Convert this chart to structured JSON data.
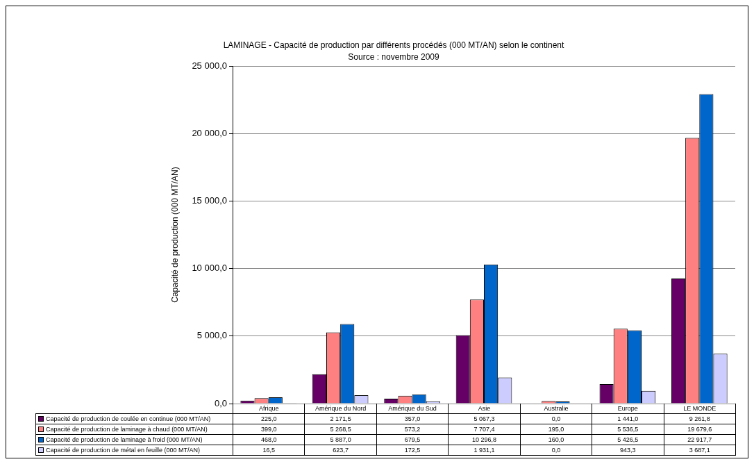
{
  "chart_data": {
    "type": "bar",
    "title": "LAMINAGE - Capacité de production par différents procédés (000 MT/AN) selon le continent",
    "subtitle": "Source : novembre 2009",
    "ylabel": "Capacité de production (000 MT/AN)",
    "categories": [
      "Afrique",
      "Amérique du Nord",
      "Amérique du Sud",
      "Asie",
      "Australie",
      "Europe",
      "LE MONDE"
    ],
    "series": [
      {
        "name": "Capacité de production de coulée en continue (000 MT/AN)",
        "color": "#660066",
        "values": [
          225.0,
          2171.5,
          357.0,
          5067.3,
          0.0,
          1441.0,
          9261.8
        ],
        "value_labels": [
          "225,0",
          "2 171,5",
          "357,0",
          "5 067,3",
          "0,0",
          "1 441,0",
          "9 261,8"
        ]
      },
      {
        "name": "Capacité de production de laminage à chaud (000 MT/AN)",
        "color": "#ff8080",
        "values": [
          399.0,
          5268.5,
          573.2,
          7707.4,
          195.0,
          5536.5,
          19679.6
        ],
        "value_labels": [
          "399,0",
          "5 268,5",
          "573,2",
          "7 707,4",
          "195,0",
          "5 536,5",
          "19 679,6"
        ]
      },
      {
        "name": "Capacité de production de laminage à froid (000 MT/AN)",
        "color": "#0066cc",
        "values": [
          468.0,
          5887.0,
          679.5,
          10296.8,
          160.0,
          5426.5,
          22917.7
        ],
        "value_labels": [
          "468,0",
          "5 887,0",
          "679,5",
          "10 296,8",
          "160,0",
          "5 426,5",
          "22 917,7"
        ]
      },
      {
        "name": "Capacité de production de métal en feuille (000 MT/AN)",
        "color": "#ccccff",
        "values": [
          16.5,
          623.7,
          172.5,
          1931.1,
          0.0,
          943.3,
          3687.1
        ],
        "value_labels": [
          "16,5",
          "623,7",
          "172,5",
          "1 931,1",
          "0,0",
          "943,3",
          "3 687,1"
        ]
      }
    ],
    "ylim": [
      0,
      25000
    ],
    "yticks": [
      {
        "value": 0,
        "label": "0,0"
      },
      {
        "value": 5000,
        "label": "5 000,0"
      },
      {
        "value": 10000,
        "label": "10 000,0"
      },
      {
        "value": 15000,
        "label": "15 000,0"
      },
      {
        "value": 20000,
        "label": "20 000,0"
      },
      {
        "value": 25000,
        "label": "25 000,0"
      }
    ],
    "grid": "y",
    "legend": "bottom"
  }
}
